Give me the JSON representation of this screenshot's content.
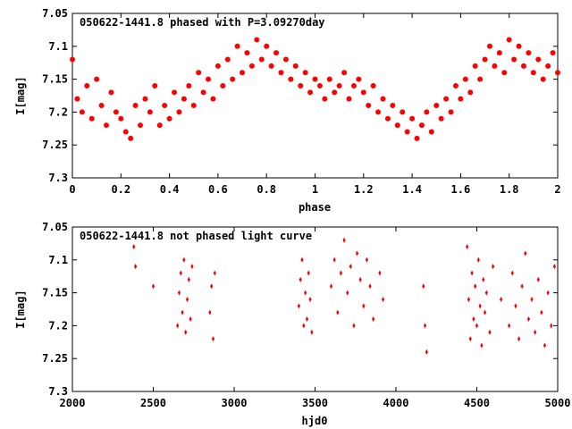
{
  "chart_data": [
    {
      "type": "scatter",
      "title": "050622-1441.8 phased with P=3.09270day",
      "xlabel": "phase",
      "ylabel": "I[mag]",
      "xlim": [
        0,
        2
      ],
      "ylim": [
        7.05,
        7.3
      ],
      "y_inverted": true,
      "x_ticks": [
        "0",
        "0.2",
        "0.4",
        "0.6",
        "0.8",
        "1",
        "1.2",
        "1.4",
        "1.6",
        "1.8",
        "2"
      ],
      "y_ticks": [
        "7.05",
        "7.1",
        "7.15",
        "7.2",
        "7.25",
        "7.3"
      ],
      "color": "#ff0000",
      "marker": "filled-circle",
      "series": [
        {
          "x": [
            0.0,
            0.02,
            0.04,
            0.06,
            0.08,
            0.1,
            0.12,
            0.14,
            0.16,
            0.18,
            0.2,
            0.22,
            0.24,
            0.26,
            0.28,
            0.3,
            0.32,
            0.34,
            0.36,
            0.38,
            0.4,
            0.42,
            0.44,
            0.46,
            0.48,
            0.5,
            0.52,
            0.54,
            0.56,
            0.58,
            0.6,
            0.62,
            0.64,
            0.66,
            0.68,
            0.7,
            0.72,
            0.74,
            0.76,
            0.78,
            0.8,
            0.82,
            0.84,
            0.86,
            0.88,
            0.9,
            0.92,
            0.94,
            0.96,
            0.98,
            1.0,
            1.02,
            1.04,
            1.06,
            1.08,
            1.1,
            1.12,
            1.14,
            1.16,
            1.18,
            1.2,
            1.22,
            1.24,
            1.26,
            1.28,
            1.3,
            1.32,
            1.34,
            1.36,
            1.38,
            1.4,
            1.42,
            1.44,
            1.46,
            1.48,
            1.5,
            1.52,
            1.54,
            1.56,
            1.58,
            1.6,
            1.62,
            1.64,
            1.66,
            1.68,
            1.7,
            1.72,
            1.74,
            1.76,
            1.78,
            1.8,
            1.82,
            1.84,
            1.86,
            1.88,
            1.9,
            1.92,
            1.94,
            1.96,
            1.98,
            2.0
          ],
          "y": [
            7.12,
            7.18,
            7.2,
            7.16,
            7.21,
            7.15,
            7.19,
            7.22,
            7.17,
            7.2,
            7.21,
            7.23,
            7.24,
            7.19,
            7.22,
            7.18,
            7.2,
            7.16,
            7.22,
            7.19,
            7.21,
            7.17,
            7.2,
            7.18,
            7.16,
            7.19,
            7.14,
            7.17,
            7.15,
            7.18,
            7.13,
            7.16,
            7.12,
            7.15,
            7.1,
            7.14,
            7.11,
            7.13,
            7.09,
            7.12,
            7.1,
            7.13,
            7.11,
            7.14,
            7.12,
            7.15,
            7.13,
            7.16,
            7.14,
            7.17,
            7.15,
            7.16,
            7.18,
            7.15,
            7.17,
            7.16,
            7.14,
            7.18,
            7.16,
            7.15,
            7.17,
            7.19,
            7.16,
            7.2,
            7.18,
            7.21,
            7.19,
            7.22,
            7.2,
            7.23,
            7.21,
            7.24,
            7.22,
            7.2,
            7.23,
            7.19,
            7.21,
            7.18,
            7.2,
            7.16,
            7.18,
            7.15,
            7.17,
            7.13,
            7.15,
            7.12,
            7.1,
            7.13,
            7.11,
            7.14,
            7.09,
            7.12,
            7.1,
            7.13,
            7.11,
            7.14,
            7.12,
            7.15,
            7.13,
            7.11,
            7.14
          ]
        }
      ]
    },
    {
      "type": "scatter",
      "title": "050622-1441.8 not phased light curve",
      "xlabel": "hjd0",
      "ylabel": "I[mag]",
      "xlim": [
        2000,
        5000
      ],
      "ylim": [
        7.05,
        7.3
      ],
      "y_inverted": true,
      "x_ticks": [
        "2000",
        "2500",
        "3000",
        "3500",
        "4000",
        "4500",
        "5000"
      ],
      "y_ticks": [
        "7.05",
        "7.1",
        "7.15",
        "7.2",
        "7.25",
        "7.3"
      ],
      "color": "#ff0000",
      "marker": "small-diamond",
      "series": [
        {
          "x": [
            2380,
            2390,
            2500,
            2650,
            2660,
            2670,
            2680,
            2690,
            2700,
            2710,
            2720,
            2730,
            2740,
            2850,
            2860,
            2870,
            2880,
            3400,
            3410,
            3420,
            3430,
            3440,
            3450,
            3460,
            3470,
            3480,
            3600,
            3620,
            3640,
            3660,
            3680,
            3700,
            3720,
            3740,
            3760,
            3780,
            3800,
            3820,
            3840,
            3860,
            3900,
            3920,
            4170,
            4180,
            4190,
            4440,
            4450,
            4460,
            4470,
            4480,
            4490,
            4500,
            4510,
            4520,
            4530,
            4540,
            4550,
            4560,
            4580,
            4600,
            4650,
            4700,
            4720,
            4740,
            4760,
            4780,
            4800,
            4820,
            4840,
            4860,
            4880,
            4900,
            4920,
            4940,
            4960,
            4980
          ],
          "y": [
            7.08,
            7.11,
            7.14,
            7.2,
            7.15,
            7.12,
            7.18,
            7.1,
            7.21,
            7.16,
            7.13,
            7.19,
            7.11,
            7.18,
            7.14,
            7.22,
            7.12,
            7.17,
            7.13,
            7.1,
            7.2,
            7.15,
            7.19,
            7.12,
            7.16,
            7.21,
            7.14,
            7.1,
            7.18,
            7.12,
            7.07,
            7.15,
            7.11,
            7.2,
            7.09,
            7.13,
            7.17,
            7.1,
            7.14,
            7.19,
            7.12,
            7.16,
            7.14,
            7.2,
            7.24,
            7.08,
            7.16,
            7.22,
            7.12,
            7.19,
            7.14,
            7.2,
            7.1,
            7.17,
            7.23,
            7.13,
            7.18,
            7.15,
            7.21,
            7.11,
            7.16,
            7.2,
            7.12,
            7.17,
            7.22,
            7.14,
            7.09,
            7.19,
            7.16,
            7.21,
            7.13,
            7.18,
            7.23,
            7.15,
            7.2,
            7.11
          ]
        }
      ]
    }
  ]
}
